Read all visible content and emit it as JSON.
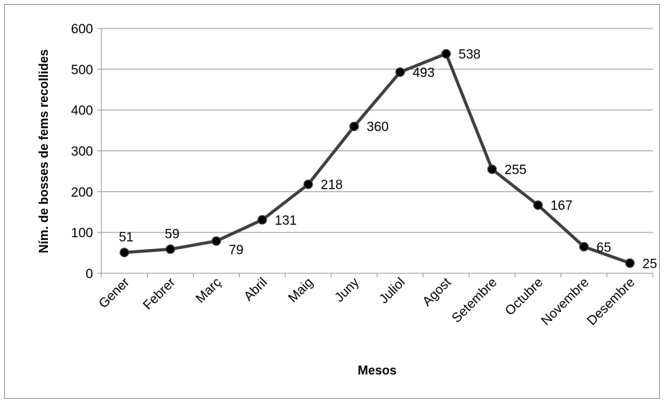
{
  "chart_data": {
    "type": "line",
    "title": "",
    "xlabel": "Mesos",
    "ylabel": "Ním. de bosses de fems recollides",
    "categories": [
      "Gener",
      "Febrer",
      "Març",
      "Abril",
      "Maig",
      "Juny",
      "Juliol",
      "Agost",
      "Setembre",
      "Octubre",
      "Novembre",
      "Desembre"
    ],
    "series": [
      {
        "values": [
          51,
          59,
          79,
          131,
          218,
          360,
          493,
          538,
          255,
          167,
          65,
          25
        ]
      }
    ],
    "ylim": [
      0,
      600
    ],
    "yticks": [
      "0",
      "100",
      "200",
      "300",
      "400",
      "500",
      "600"
    ],
    "grid": true,
    "legend": "none",
    "colors": {
      "line": "#404040",
      "marker": "#000000",
      "grid": "#8c8c8c"
    }
  }
}
